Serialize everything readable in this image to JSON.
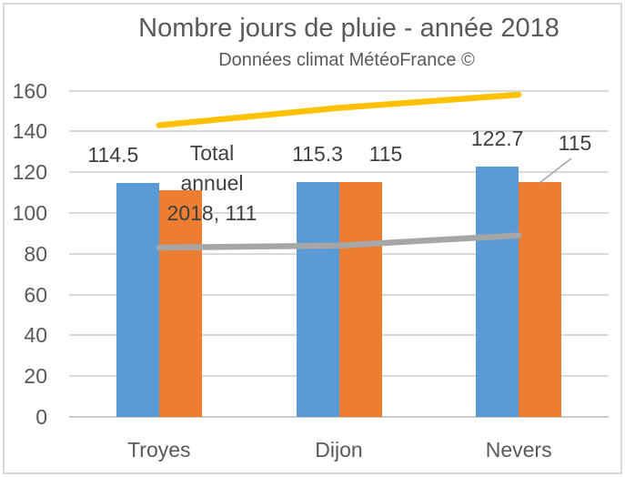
{
  "chart_data": {
    "type": "combo-bar-line",
    "title": "Nombre jours de pluie - année 2018",
    "subtitle": "Données climat MétéoFrance ©",
    "categories": [
      "Troyes",
      "Dijon",
      "Nevers"
    ],
    "ylim": [
      0,
      160
    ],
    "yticks": [
      0,
      20,
      40,
      60,
      80,
      100,
      120,
      140,
      160
    ],
    "grid": true,
    "legend": "none",
    "series": [
      {
        "kind": "bar",
        "name": "",
        "color": "#5B9BD5",
        "values": [
          114.5,
          115.3,
          122.7
        ]
      },
      {
        "kind": "bar",
        "name": "Total annuel 2018",
        "color": "#ED7D31",
        "values": [
          111,
          115,
          115
        ]
      },
      {
        "kind": "line",
        "name": "",
        "color": "#A6A6A6",
        "values": [
          83,
          84,
          89
        ]
      },
      {
        "kind": "line",
        "name": "",
        "color": "#FFC000",
        "values": [
          143,
          151.5,
          158
        ]
      }
    ],
    "data_labels": {
      "blue": [
        "114.5",
        "115.3",
        "122.7"
      ],
      "orange_troyes_annotation_lines": [
        "Total",
        "annuel",
        "2018, 111"
      ],
      "orange_dijon": "115",
      "orange_nevers": "115"
    }
  },
  "colors": {
    "bar_blue": "#5B9BD5",
    "bar_orange": "#ED7D31",
    "line_gray": "#A6A6A6",
    "line_yellow": "#FFC000",
    "gridline": "#D9D9D9",
    "axis_text": "#595959",
    "label_text": "#404040",
    "border": "#D9D9D9"
  }
}
